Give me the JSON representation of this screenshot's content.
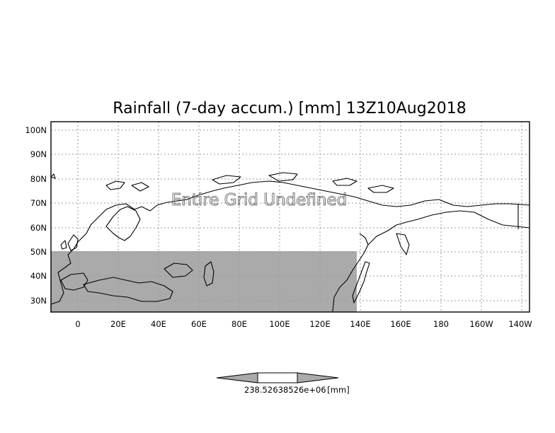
{
  "title": "Rainfall (7-day accum.) [mm] 13Z10Aug2018",
  "overlay_text": "Entire Grid Undefined",
  "axes": {
    "lat_labels": [
      "100N",
      "90N",
      "80N",
      "70N",
      "60N",
      "50N",
      "40N",
      "30N"
    ],
    "lon_labels": [
      "0",
      "20E",
      "40E",
      "60E",
      "80E",
      "100E",
      "120E",
      "140E",
      "160E",
      "180",
      "160W",
      "140W"
    ]
  },
  "colorbar": {
    "left_label": "238.52",
    "middle_label": "638526e+06",
    "unit_label": "[mm]"
  },
  "colors": {
    "shading": "#aaaaaa",
    "coast": "#000000",
    "grid": "#9a9a9a"
  }
}
